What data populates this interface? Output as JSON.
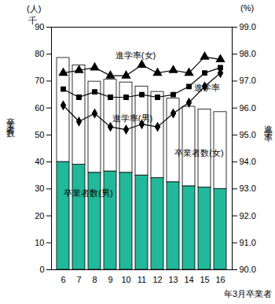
{
  "chart_data": {
    "type": "bar",
    "categories": [
      "6",
      "7",
      "8",
      "9",
      "10",
      "11",
      "12",
      "13",
      "14",
      "15",
      "16"
    ],
    "x_label": "年3月卒業者",
    "y_label": "卒業者数",
    "y2_label": "進学率",
    "annotations": [
      "(人)",
      "千",
      "(%)"
    ],
    "stacked": true,
    "ylim": [
      0,
      90
    ],
    "yticks": [
      0,
      10,
      20,
      30,
      40,
      50,
      60,
      70,
      80,
      90
    ],
    "y2lim": [
      90,
      99
    ],
    "y2ticks": [
      {
        "value": 90,
        "label": "90.0"
      },
      {
        "value": 91,
        "label": "91.0"
      },
      {
        "value": 92,
        "label": "92.0"
      },
      {
        "value": 93,
        "label": "93.0"
      },
      {
        "value": 94,
        "label": "94.0"
      },
      {
        "value": 95,
        "label": "95.0"
      },
      {
        "value": 96,
        "label": "96.0"
      },
      {
        "value": 97,
        "label": "97.0"
      },
      {
        "value": 98,
        "label": "98.0"
      },
      {
        "value": 99,
        "label": "99.0"
      }
    ],
    "series": [
      {
        "name": "卒業者数(男)",
        "type": "bar",
        "color": "#22b89a",
        "values": [
          40,
          39,
          36,
          36.5,
          36,
          35,
          34,
          32.5,
          31,
          30.5,
          30
        ]
      },
      {
        "name": "卒業者数(女)",
        "type": "bar",
        "color": "#ffffff",
        "values": [
          38.6,
          36.8,
          33.8,
          34,
          33.5,
          33,
          32,
          31,
          29.5,
          29,
          28.5
        ]
      },
      {
        "name": "進学率(女)",
        "type": "line",
        "axis": "y2",
        "color": "#000000",
        "marker": "triangle",
        "line_style": "solid",
        "values": [
          97.3,
          97.4,
          97.5,
          97.2,
          97.2,
          97.6,
          97.3,
          97.4,
          97.3,
          97.9,
          97.8
        ]
      },
      {
        "name": "進学率",
        "type": "line",
        "axis": "y2",
        "color": "#000000",
        "marker": "square",
        "line_style": "solid",
        "values": [
          96.7,
          96.4,
          96.6,
          96.4,
          96.4,
          96.5,
          96.4,
          96.5,
          96.8,
          97.3,
          97.5
        ]
      },
      {
        "name": "進学率(男)",
        "type": "line",
        "axis": "y2",
        "color": "#000000",
        "marker": "diamond",
        "line_style": "solid",
        "values": [
          96.1,
          95.5,
          95.8,
          95.3,
          95.2,
          95.4,
          95.3,
          95.8,
          96.2,
          96.8,
          97.3
        ]
      }
    ]
  }
}
